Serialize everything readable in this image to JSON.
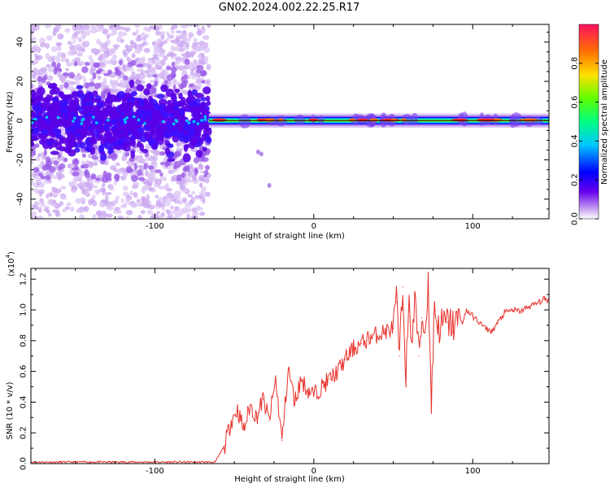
{
  "title": "GN02.2024.002.22.25.R17",
  "chart_data": [
    {
      "type": "heatmap",
      "xlabel": "Height of straight line (km)",
      "ylabel": "Frequency (Hz)",
      "xlim": [
        -178,
        148
      ],
      "ylim": [
        -50,
        49
      ],
      "xticks": [
        -100,
        0,
        100
      ],
      "yticks": [
        -40,
        -20,
        0,
        20,
        40
      ],
      "colorbar": {
        "label": "Normalized spectral amplitude",
        "range": [
          0.0,
          1.0
        ],
        "ticks": [
          "0.0",
          "0.2",
          "0.4",
          "0.6",
          "0.8"
        ],
        "colors": [
          "#ffffff",
          "#c8a0f0",
          "#6600ee",
          "#0000ff",
          "#00c8ff",
          "#00ff80",
          "#80ff00",
          "#ffe000",
          "#ff7000",
          "#ff1060"
        ]
      },
      "description_values": {
        "noise_region_x": [
          -178,
          -66
        ],
        "noise_band_center_hz": 0,
        "noise_band_halfwidth_hz": 12,
        "line_region_x": [
          -66,
          148
        ],
        "line_center_hz": 0
      }
    },
    {
      "type": "line",
      "xlabel": "Height of straight line (km)",
      "ylabel": "SNR (10 * v/v)",
      "yscale_label": "(x10",
      "yscale_exp": "4",
      "yscale_close": ")",
      "xlim": [
        -178,
        148
      ],
      "ylim": [
        0.0,
        1.27
      ],
      "xticks": [
        -100,
        0,
        100
      ],
      "yticks": [
        "0.0",
        "0.2",
        "0.4",
        "0.6",
        "0.8",
        "1.0",
        "1.2"
      ],
      "color": "#e8302a",
      "series": [
        {
          "x": [
            -178,
            -160,
            -140,
            -120,
            -100,
            -80,
            -62,
            -56,
            -52,
            -48,
            -44,
            -40,
            -36,
            -32,
            -28,
            -24,
            -20,
            -16,
            -12,
            -8,
            -4,
            0,
            5,
            10,
            15,
            20,
            25,
            30,
            35,
            40,
            45,
            50,
            52,
            54,
            56,
            58,
            60,
            62,
            64,
            66,
            68,
            70,
            72,
            74,
            76,
            78,
            80,
            84,
            88,
            92,
            94,
            96,
            100,
            104,
            108,
            112,
            116,
            120,
            125,
            130,
            135,
            140,
            145,
            148
          ],
          "y": [
            0.01,
            0.01,
            0.01,
            0.01,
            0.01,
            0.01,
            0.01,
            0.12,
            0.28,
            0.35,
            0.22,
            0.38,
            0.3,
            0.42,
            0.28,
            0.55,
            0.15,
            0.62,
            0.4,
            0.55,
            0.48,
            0.45,
            0.5,
            0.55,
            0.6,
            0.68,
            0.75,
            0.78,
            0.82,
            0.84,
            0.86,
            0.88,
            1.05,
            0.7,
            1.15,
            0.6,
            1.0,
            0.82,
            1.1,
            0.7,
            0.95,
            0.85,
            1.18,
            0.4,
            1.05,
            0.88,
            0.9,
            0.92,
            0.9,
            0.95,
            0.92,
            1.0,
            0.96,
            0.92,
            0.88,
            0.86,
            0.92,
            0.98,
            1.0,
            0.99,
            1.02,
            1.04,
            1.07,
            1.06
          ]
        }
      ]
    }
  ]
}
